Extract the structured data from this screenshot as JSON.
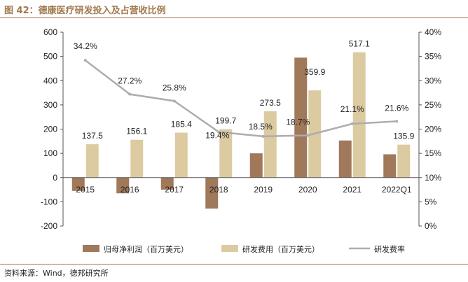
{
  "figure": {
    "title": "图 42：德康医疗研发投入及占营收比例",
    "source": "资料来源：Wind，德邦研究所"
  },
  "colors": {
    "title": "#a0784c",
    "profit_bar": "#a0785a",
    "rd_bar": "#dccba1",
    "ratio_line": "#adadad"
  },
  "chart_data": {
    "type": "bar",
    "categories": [
      "2015",
      "2016",
      "2017",
      "2018",
      "2019",
      "2020",
      "2021",
      "2022Q1"
    ],
    "series": [
      {
        "name": "归母净利润（百万美元）",
        "type": "bar",
        "axis": "left",
        "values": [
          -55,
          -65,
          -50,
          -128,
          100,
          495,
          153,
          96
        ],
        "labels": [
          "",
          "",
          "",
          "",
          "",
          "",
          "",
          ""
        ]
      },
      {
        "name": "研发费用（百万美元）",
        "type": "bar",
        "axis": "left",
        "values": [
          137.5,
          156.1,
          185.4,
          199.7,
          273.5,
          359.9,
          517.1,
          135.9
        ],
        "labels": [
          "137.5",
          "156.1",
          "185.4",
          "199.7",
          "273.5",
          "359.9",
          "517.1",
          "135.9"
        ]
      },
      {
        "name": "研发费率",
        "type": "line",
        "axis": "right",
        "values": [
          34.2,
          27.2,
          25.8,
          19.4,
          18.5,
          18.7,
          21.1,
          21.6
        ],
        "labels": [
          "34.2%",
          "27.2%",
          "25.8%",
          "19.4%",
          "18.5%",
          "18.7%",
          "21.1%",
          "21.6%"
        ]
      }
    ],
    "ylim_left": [
      -200,
      600
    ],
    "yticks_left": [
      "-200",
      "-100",
      "0",
      "100",
      "200",
      "300",
      "400",
      "500",
      "600"
    ],
    "ylim_right": [
      0,
      40
    ],
    "yticks_right": [
      "0%",
      "5%",
      "10%",
      "15%",
      "20%",
      "25%",
      "30%",
      "35%",
      "40%"
    ],
    "grid": false,
    "legend_position": "bottom"
  }
}
